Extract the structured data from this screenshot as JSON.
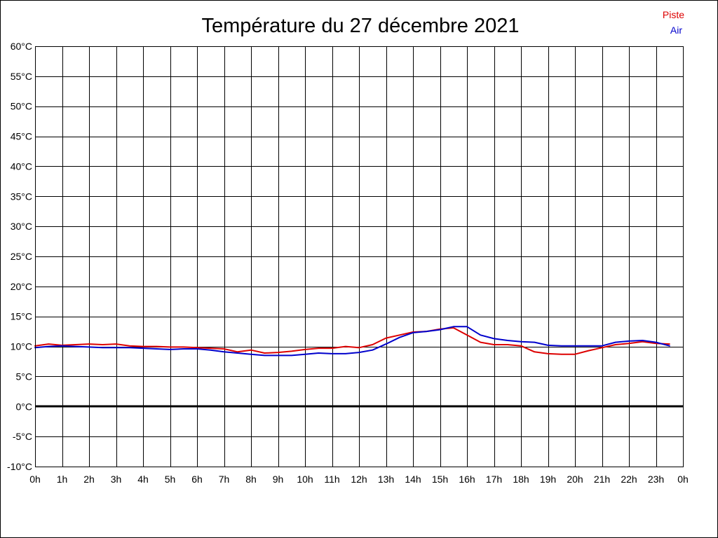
{
  "chart_data": {
    "type": "line",
    "title": "Température du 27 décembre 2021",
    "xlim": [
      0,
      24
    ],
    "ylim": [
      -10,
      60
    ],
    "grid": true,
    "zero_line": true,
    "legend_position": "top-right",
    "x_ticks": [
      0,
      1,
      2,
      3,
      4,
      5,
      6,
      7,
      8,
      9,
      10,
      11,
      12,
      13,
      14,
      15,
      16,
      17,
      18,
      19,
      20,
      21,
      22,
      23,
      24
    ],
    "x_tick_labels": [
      "0h",
      "1h",
      "2h",
      "3h",
      "4h",
      "5h",
      "6h",
      "7h",
      "8h",
      "9h",
      "10h",
      "11h",
      "12h",
      "13h",
      "14h",
      "15h",
      "16h",
      "17h",
      "18h",
      "19h",
      "20h",
      "21h",
      "22h",
      "23h",
      "0h"
    ],
    "y_ticks": [
      -10,
      -5,
      0,
      5,
      10,
      15,
      20,
      25,
      30,
      35,
      40,
      45,
      50,
      55,
      60
    ],
    "y_tick_labels": [
      "-10°C",
      "-5°C",
      "0°C",
      "5°C",
      "10°C",
      "15°C",
      "20°C",
      "25°C",
      "30°C",
      "35°C",
      "40°C",
      "45°C",
      "50°C",
      "55°C",
      "60°C"
    ],
    "x": [
      0,
      0.5,
      1,
      1.5,
      2,
      2.5,
      3,
      3.5,
      4,
      4.5,
      5,
      5.5,
      6,
      6.5,
      7,
      7.5,
      8,
      8.5,
      9,
      9.5,
      10,
      10.5,
      11,
      11.5,
      12,
      12.5,
      13,
      13.5,
      14,
      14.5,
      15,
      15.5,
      16,
      16.5,
      17,
      17.5,
      18,
      18.5,
      19,
      19.5,
      20,
      20.5,
      21,
      21.5,
      22,
      22.5,
      23,
      23.5
    ],
    "series": [
      {
        "name": "Piste",
        "color": "#dd0000",
        "values": [
          10.1,
          10.4,
          10.2,
          10.3,
          10.4,
          10.3,
          10.4,
          10.1,
          10.0,
          10.0,
          9.9,
          9.9,
          9.8,
          9.7,
          9.6,
          9.1,
          9.4,
          8.9,
          9.0,
          9.2,
          9.5,
          9.7,
          9.7,
          10.0,
          9.8,
          10.3,
          11.4,
          11.9,
          12.4,
          12.5,
          12.9,
          13.1,
          11.9,
          10.7,
          10.3,
          10.3,
          10.1,
          9.1,
          8.8,
          8.7,
          8.7,
          9.3,
          9.8,
          10.3,
          10.5,
          10.8,
          10.5,
          10.4
        ]
      },
      {
        "name": "Air",
        "color": "#0000cc",
        "values": [
          9.8,
          10.0,
          10.1,
          10.0,
          9.9,
          9.8,
          9.8,
          9.8,
          9.7,
          9.6,
          9.5,
          9.6,
          9.6,
          9.4,
          9.1,
          8.9,
          8.7,
          8.5,
          8.5,
          8.5,
          8.7,
          8.9,
          8.8,
          8.8,
          9.0,
          9.4,
          10.4,
          11.5,
          12.3,
          12.5,
          12.8,
          13.3,
          13.3,
          11.9,
          11.3,
          11.0,
          10.8,
          10.7,
          10.2,
          10.1,
          10.1,
          10.1,
          10.1,
          10.7,
          10.9,
          11.0,
          10.7,
          10.1
        ]
      }
    ]
  }
}
